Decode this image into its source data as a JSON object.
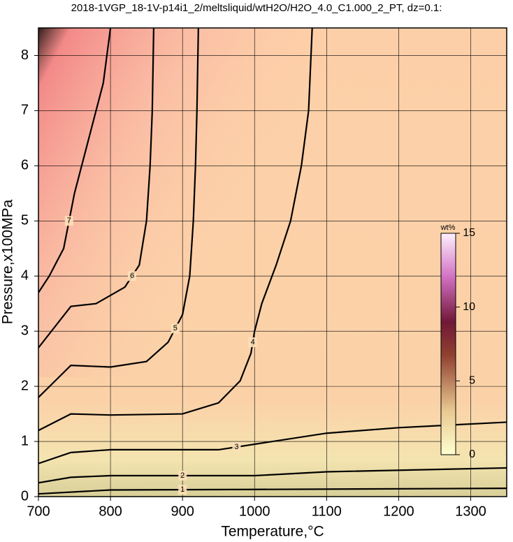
{
  "chart_data": {
    "type": "contour",
    "title": "2018-1VGP_18-1V-p14i1_2/meltsliquid/wtH2O/H2O_4.0_C1.000_2_PT, dz=0.1:",
    "x_label": "Temperature,°C",
    "y_label": "Pressure,x100MPa",
    "xlim": [
      700,
      1350
    ],
    "ylim": [
      0,
      8.5
    ],
    "xticks": [
      700,
      800,
      900,
      1000,
      1100,
      1200,
      1300
    ],
    "yticks": [
      0,
      1,
      2,
      3,
      4,
      5,
      6,
      7,
      8
    ],
    "grid": true,
    "contours": [
      {
        "level": 1,
        "x": [
          700,
          800,
          1000,
          1350
        ],
        "y": [
          0.05,
          0.12,
          0.13,
          0.15
        ]
      },
      {
        "level": 2,
        "x": [
          700,
          745,
          800,
          1000,
          1100,
          1350
        ],
        "y": [
          0.25,
          0.35,
          0.38,
          0.38,
          0.45,
          0.52
        ]
      },
      {
        "level": 3,
        "x": [
          700,
          745,
          800,
          950,
          1000,
          1100,
          1200,
          1350
        ],
        "y": [
          0.6,
          0.8,
          0.85,
          0.85,
          0.95,
          1.15,
          1.25,
          1.35
        ]
      },
      {
        "level": 4,
        "x": [
          700,
          745,
          800,
          900,
          950,
          980,
          995,
          1000,
          1010,
          1030,
          1050,
          1065,
          1075,
          1080
        ],
        "y": [
          1.2,
          1.5,
          1.48,
          1.5,
          1.7,
          2.1,
          2.6,
          3.0,
          3.5,
          4.2,
          5.0,
          6.0,
          7.0,
          8.5
        ]
      },
      {
        "level": 5,
        "x": [
          700,
          745,
          800,
          850,
          880,
          900,
          910,
          915,
          918,
          920,
          922
        ],
        "y": [
          1.8,
          2.38,
          2.35,
          2.45,
          2.8,
          3.3,
          4.0,
          5.0,
          6.0,
          7.0,
          8.5
        ]
      },
      {
        "level": 6,
        "x": [
          700,
          745,
          780,
          820,
          840,
          850,
          855,
          858,
          860
        ],
        "y": [
          2.7,
          3.45,
          3.5,
          3.8,
          4.2,
          5.0,
          6.0,
          7.0,
          8.5
        ]
      },
      {
        "level": 7,
        "x": [
          700,
          715,
          735,
          750,
          770,
          790,
          800
        ],
        "y": [
          3.7,
          4.0,
          4.5,
          5.5,
          6.5,
          7.5,
          8.5
        ]
      }
    ],
    "colorbar": {
      "label": "wt%",
      "lim": [
        0,
        15
      ],
      "ticks": [
        0,
        5,
        10,
        15
      ]
    }
  }
}
